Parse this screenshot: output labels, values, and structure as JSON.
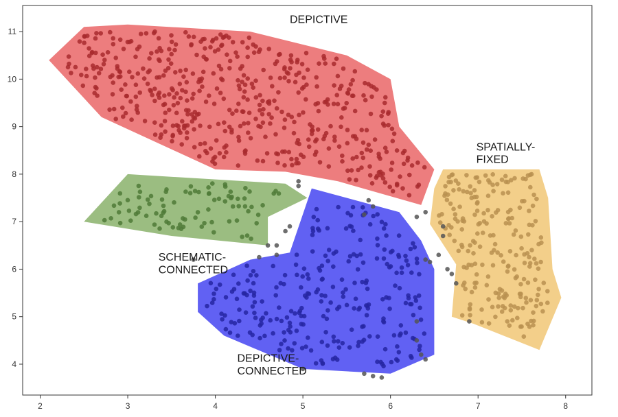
{
  "chart_data": {
    "type": "scatter",
    "title": "",
    "xlabel": "",
    "ylabel": "",
    "xlim": [
      1.8,
      8.3
    ],
    "ylim": [
      3.35,
      11.55
    ],
    "x_ticks": [
      2,
      3,
      4,
      5,
      6,
      7,
      8
    ],
    "y_ticks": [
      4,
      5,
      6,
      7,
      8,
      9,
      10,
      11
    ],
    "grid": false,
    "point_color": "#555555",
    "clusters": [
      {
        "label_lines": [
          "DEPICTIVE"
        ],
        "label_pos": [
          4.85,
          11.18
        ],
        "fill": "#e8585a",
        "dot": "#a82a2e",
        "hull": [
          [
            2.1,
            10.4
          ],
          [
            2.5,
            11.1
          ],
          [
            3.0,
            11.15
          ],
          [
            4.4,
            11.0
          ],
          [
            5.5,
            10.5
          ],
          [
            6.0,
            10.0
          ],
          [
            6.1,
            9.0
          ],
          [
            6.5,
            8.1
          ],
          [
            6.35,
            7.35
          ],
          [
            5.4,
            7.85
          ],
          [
            4.8,
            8.05
          ],
          [
            4.0,
            8.1
          ],
          [
            2.7,
            9.2
          ]
        ],
        "n": 520
      },
      {
        "label_lines": [
          "SPATIALLY-",
          "FIXED"
        ],
        "label_pos": [
          6.98,
          8.5
        ],
        "fill": "#f0c169",
        "dot": "#b89150",
        "hull": [
          [
            6.5,
            7.7
          ],
          [
            6.6,
            8.1
          ],
          [
            7.7,
            8.1
          ],
          [
            7.8,
            7.5
          ],
          [
            7.85,
            6.0
          ],
          [
            7.95,
            5.4
          ],
          [
            7.7,
            4.3
          ],
          [
            6.95,
            4.85
          ],
          [
            6.7,
            5.0
          ],
          [
            6.75,
            6.1
          ],
          [
            6.45,
            6.95
          ]
        ],
        "n": 220
      },
      {
        "label_lines": [
          "SCHEMATIC-",
          "CONNECTED"
        ],
        "label_pos": [
          3.35,
          6.18
        ],
        "fill": "#7faa5e",
        "dot": "#4f7a37",
        "hull": [
          [
            2.5,
            7.0
          ],
          [
            3.0,
            8.0
          ],
          [
            4.8,
            7.8
          ],
          [
            5.05,
            7.5
          ],
          [
            4.6,
            7.1
          ],
          [
            4.6,
            6.5
          ],
          [
            3.5,
            6.7
          ]
        ],
        "n": 85
      },
      {
        "label_lines": [
          "DEPICTIVE-",
          "CONNECTED"
        ],
        "label_pos": [
          4.25,
          4.05
        ],
        "fill": "#3434ef",
        "dot": "#2626a2",
        "hull": [
          [
            3.8,
            5.1
          ],
          [
            3.8,
            5.7
          ],
          [
            4.4,
            6.2
          ],
          [
            4.85,
            6.35
          ],
          [
            5.1,
            7.7
          ],
          [
            6.1,
            7.2
          ],
          [
            6.35,
            6.6
          ],
          [
            6.5,
            6.0
          ],
          [
            6.5,
            4.2
          ],
          [
            6.0,
            3.8
          ],
          [
            5.5,
            3.85
          ],
          [
            5.0,
            3.9
          ],
          [
            4.1,
            4.6
          ]
        ],
        "n": 270
      }
    ],
    "outlier_points": [
      [
        4.95,
        7.85
      ],
      [
        4.95,
        7.75
      ],
      [
        5.75,
        7.45
      ],
      [
        5.8,
        7.32
      ],
      [
        5.7,
        7.15
      ],
      [
        4.85,
        6.9
      ],
      [
        4.8,
        6.8
      ],
      [
        4.7,
        6.5
      ],
      [
        4.6,
        6.5
      ],
      [
        4.7,
        6.3
      ],
      [
        6.6,
        6.9
      ],
      [
        6.6,
        6.7
      ],
      [
        6.3,
        7.1
      ],
      [
        6.4,
        7.2
      ],
      [
        6.55,
        6.3
      ],
      [
        6.65,
        6.0
      ],
      [
        6.7,
        5.9
      ],
      [
        6.75,
        5.7
      ],
      [
        3.75,
        6.2
      ],
      [
        4.5,
        6.25
      ],
      [
        6.45,
        6.15
      ],
      [
        6.4,
        6.2
      ],
      [
        6.3,
        4.9
      ],
      [
        6.3,
        4.5
      ],
      [
        6.35,
        4.2
      ],
      [
        6.4,
        4.1
      ],
      [
        5.7,
        3.8
      ],
      [
        5.8,
        3.75
      ],
      [
        5.9,
        3.72
      ],
      [
        5.0,
        3.9
      ],
      [
        6.9,
        4.9
      ]
    ]
  }
}
